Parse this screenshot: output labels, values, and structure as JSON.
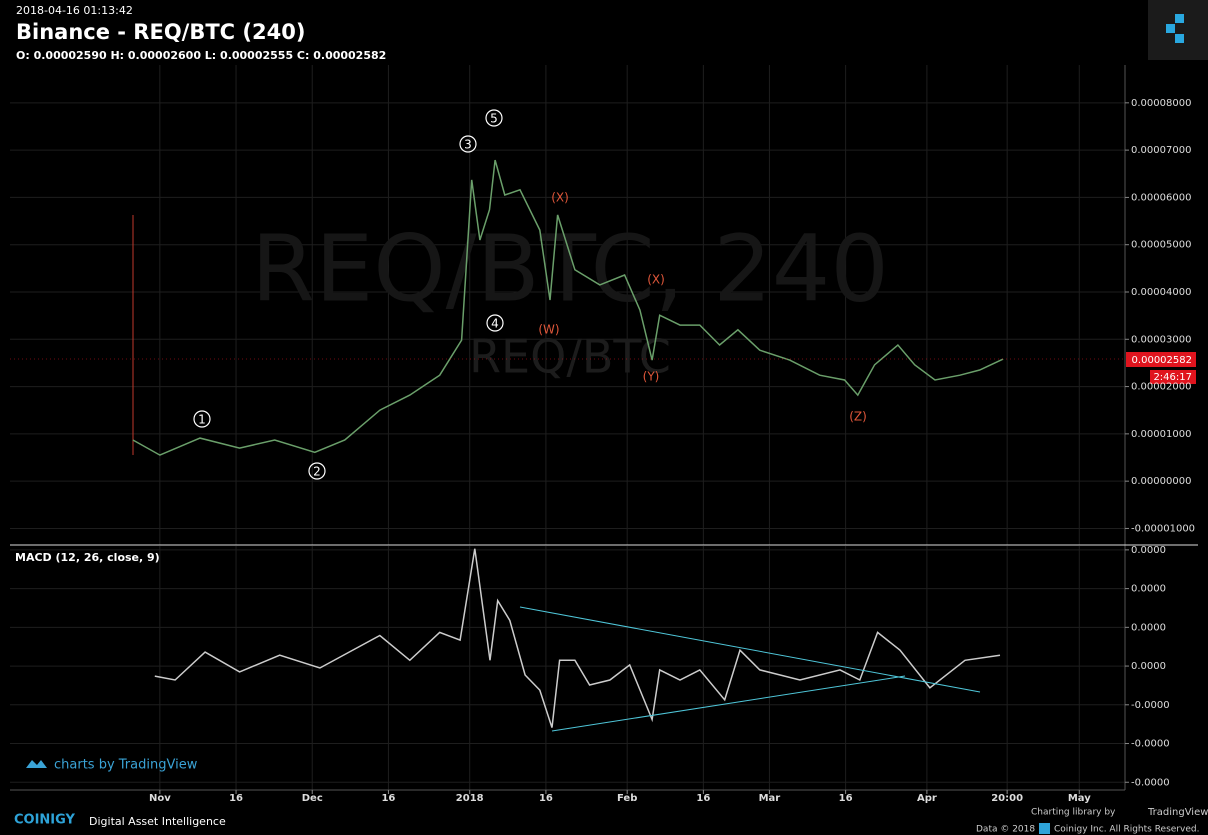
{
  "header": {
    "timestamp": "2018-04-16 01:13:42",
    "title": "Binance - REQ/BTC (240)",
    "ohlc": "O: 0.00002590 H: 0.00002600 L: 0.00002555 C: 0.00002582"
  },
  "chart_data": [
    {
      "type": "line",
      "watermark": "REQ/BTC, 240",
      "subwatermark": "REQ/BTC",
      "xlim": [
        -29.5,
        190
      ],
      "ylim": [
        -1.35e-05,
        8.8e-05
      ],
      "xticks": [
        {
          "value": 0,
          "label": "Nov"
        },
        {
          "value": 15,
          "label": "16"
        },
        {
          "value": 30,
          "label": "Dec"
        },
        {
          "value": 45,
          "label": "16"
        },
        {
          "value": 61,
          "label": "2018"
        },
        {
          "value": 76,
          "label": "16"
        },
        {
          "value": 92,
          "label": "Feb"
        },
        {
          "value": 107,
          "label": "16"
        },
        {
          "value": 120,
          "label": "Mar"
        },
        {
          "value": 135,
          "label": "16"
        },
        {
          "value": 151,
          "label": "Apr"
        },
        {
          "value": 166.8,
          "label": "20:00"
        },
        {
          "value": 181,
          "label": "May"
        }
      ],
      "yticks": [
        {
          "value": 8e-05,
          "label": "0.00008000"
        },
        {
          "value": 7e-05,
          "label": "0.00007000"
        },
        {
          "value": 6e-05,
          "label": "0.00006000"
        },
        {
          "value": 5e-05,
          "label": "0.00005000"
        },
        {
          "value": 4e-05,
          "label": "0.00004000"
        },
        {
          "value": 3e-05,
          "label": "0.00003000"
        },
        {
          "value": 2e-05,
          "label": "0.00002000"
        },
        {
          "value": 1e-05,
          "label": "0.00001000"
        },
        {
          "value": 0,
          "label": "0.00000000"
        },
        {
          "value": -1e-05,
          "label": "-0.00001000"
        }
      ],
      "grid": true,
      "last_price": {
        "value": 2.582e-05,
        "label": "0.00002582"
      },
      "countdown": "2:46:17",
      "annotations": [
        "1",
        "2",
        "3",
        "4",
        "5",
        "(W)",
        "(X)",
        "(Y)",
        "(X)",
        "(Z)"
      ],
      "series": [
        {
          "name": "REQ/BTC",
          "color": "#6a9f6a",
          "x": [
            -5.3,
            0,
            7.9,
            15.7,
            22.6,
            30.5,
            36.4,
            43.3,
            49.2,
            55.1,
            59.4,
            61.4,
            63,
            64.9,
            66,
            67.9,
            70.9,
            74.8,
            76.8,
            78.3,
            81.7,
            86.6,
            91.5,
            94.5,
            96.9,
            98.4,
            102.4,
            106.3,
            110.2,
            113.8,
            118.1,
            124,
            129.9,
            134.8,
            137.4,
            140.7,
            145.3,
            148.6,
            152.6,
            157.5,
            161.4,
            166
          ],
          "values": [
            8.7e-06,
            5.5e-06,
            9.1e-06,
            7e-06,
            8.7e-06,
            6.1e-06,
            8.7e-06,
            1.5e-05,
            1.82e-05,
            2.24e-05,
            2.98e-05,
            6.37e-05,
            5.1e-05,
            5.74e-05,
            6.79e-05,
            6.05e-05,
            6.16e-05,
            5.31e-05,
            3.83e-05,
            5.63e-05,
            4.47e-05,
            4.15e-05,
            4.36e-05,
            3.62e-05,
            2.56e-05,
            3.51e-05,
            3.3e-05,
            3.3e-05,
            2.88e-05,
            3.2e-05,
            2.77e-05,
            2.56e-05,
            2.24e-05,
            2.14e-05,
            1.82e-05,
            2.46e-05,
            2.88e-05,
            2.46e-05,
            2.14e-05,
            2.24e-05,
            2.35e-05,
            2.58e-05
          ]
        }
      ]
    },
    {
      "type": "line",
      "title": "MACD (12, 26, close, 9)",
      "xlim": [
        -29.5,
        190
      ],
      "ylim": [
        -3.2e-06,
        3.1e-06
      ],
      "yticks": [
        {
          "value": 3e-06,
          "label": "0.0000"
        },
        {
          "value": 2e-06,
          "label": "0.0000"
        },
        {
          "value": 1e-06,
          "label": "0.0000"
        },
        {
          "value": 0,
          "label": "0.0000"
        },
        {
          "value": -1e-06,
          "label": "-0.0000"
        },
        {
          "value": -2e-06,
          "label": "-0.0000"
        },
        {
          "value": -3e-06,
          "label": "-0.0000"
        }
      ],
      "grid": true,
      "series": [
        {
          "name": "MACD",
          "color": "#cccccc",
          "x": [
            -1,
            3,
            8.9,
            15.7,
            23.6,
            31.5,
            43.3,
            49.2,
            55.1,
            59.1,
            62,
            65,
            66.5,
            68.9,
            71.9,
            74.8,
            77.2,
            78.7,
            81.7,
            84.6,
            88.6,
            92.5,
            96.9,
            98.4,
            102.4,
            106.3,
            111.2,
            114.2,
            118.1,
            126,
            133.9,
            137.8,
            141.3,
            145.7,
            151.6,
            158.5,
            165.4
          ],
          "values": [
            -2.6e-07,
            -3.6e-07,
            3.6e-07,
            -1.5e-07,
            2.8e-07,
            -5e-08,
            7.9e-07,
            1.5e-07,
            8.7e-07,
            6.7e-07,
            3.03e-06,
            1.5e-07,
            1.69e-06,
            1.18e-06,
            -2.3e-07,
            -6.2e-07,
            -1.59e-06,
            1.5e-07,
            1.5e-07,
            -4.9e-07,
            -3.6e-07,
            3e-08,
            -1.38e-06,
            -1e-07,
            -3.6e-07,
            -1e-07,
            -8.7e-07,
            4.1e-07,
            -1e-07,
            -3.6e-07,
            -1e-07,
            -3.6e-07,
            8.7e-07,
            4.1e-07,
            -5.6e-07,
            1.5e-07,
            2.8e-07
          ]
        }
      ]
    }
  ],
  "footer": {
    "tv_badge": "charts by TradingView",
    "brand": "COINIGY",
    "tagline": "Digital Asset Intelligence",
    "library": "Charting library by",
    "library_name": "TradingView",
    "data_copy": "Data © 2018",
    "rights": "Coinigy Inc. All Rights Reserved."
  }
}
